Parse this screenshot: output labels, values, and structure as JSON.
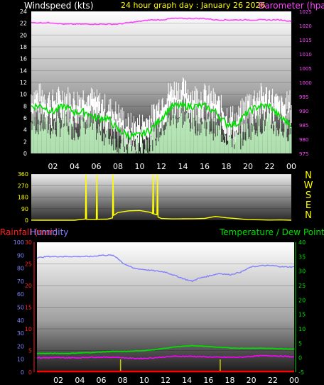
{
  "header": {
    "wind_title": "Windspeed (kts)",
    "date_title": "24 hour graph day : January 26 2026",
    "baro_title": "Barometer (hpa)"
  },
  "x_ticks": [
    "02",
    "04",
    "06",
    "08",
    "10",
    "12",
    "14",
    "16",
    "18",
    "20",
    "22",
    "00"
  ],
  "colors": {
    "wind_gust": "#ffffff",
    "wind_speed": "#c8ffc8",
    "wind_avg": "#00e000",
    "barometer": "#ff44ff",
    "direction": "#ffff00",
    "humidity": "#8080ff",
    "temperature": "#00dd00",
    "dew_point": "#ff00ff",
    "rainfall": "#ff0000",
    "rain_marks": "#cccc00"
  },
  "chart_data": [
    {
      "type": "line",
      "panel": "wind-barometer",
      "title": "24 hour graph day : January 26 2026",
      "ylabel": "Windspeed (kts)",
      "ylim": [
        0,
        24
      ],
      "yticks": [
        0,
        2,
        4,
        6,
        8,
        10,
        12,
        14,
        16,
        18,
        20,
        22,
        24
      ],
      "y2label": "Barometer (hpa)",
      "y2lim": [
        975,
        1025
      ],
      "y2ticks": [
        975,
        980,
        985,
        990,
        995,
        1000,
        1005,
        1010,
        1015,
        1020,
        1025
      ],
      "x_hours": [
        0,
        1,
        2,
        3,
        4,
        5,
        6,
        7,
        8,
        9,
        10,
        11,
        12,
        13,
        14,
        15,
        16,
        17,
        18,
        19,
        20,
        21,
        22,
        23,
        24
      ],
      "series": [
        {
          "name": "gust",
          "values": [
            10,
            10,
            9,
            10,
            9,
            10,
            9,
            8,
            7,
            5,
            5,
            6,
            9,
            11,
            11,
            10,
            10,
            9,
            7,
            6,
            9,
            10,
            10,
            8,
            9
          ]
        },
        {
          "name": "speed",
          "values": [
            5,
            5,
            4,
            5,
            4,
            5,
            4,
            3,
            2,
            1,
            1,
            2,
            4,
            6,
            6,
            5,
            5,
            4,
            3,
            2,
            4,
            5,
            5,
            4,
            4
          ]
        },
        {
          "name": "average",
          "values": [
            8,
            8,
            7,
            8,
            7,
            7,
            6,
            6,
            4,
            3,
            3,
            4,
            6,
            8,
            8,
            8,
            8,
            7,
            5,
            5,
            7,
            8,
            8,
            6,
            5
          ]
        },
        {
          "name": "barometer",
          "values": [
            1021,
            1021,
            1021,
            1020.5,
            1020.5,
            1020.5,
            1020.5,
            1020.5,
            1020.5,
            1021,
            1021.5,
            1022,
            1022,
            1022.5,
            1022.5,
            1022.5,
            1022.5,
            1022,
            1022,
            1022,
            1022,
            1022,
            1022,
            1022,
            1021.5
          ]
        }
      ]
    },
    {
      "type": "line",
      "panel": "wind-direction",
      "ylim": [
        0,
        360
      ],
      "yticks": [
        0,
        90,
        180,
        270,
        360
      ],
      "compass": [
        "N",
        "W",
        "S",
        "E",
        "N"
      ],
      "x_hours": [
        0,
        1,
        2,
        3,
        4,
        5,
        5.05,
        5.1,
        6,
        6.05,
        6.1,
        7,
        7.5,
        7.55,
        7.6,
        8,
        9,
        10,
        11,
        11.2,
        11.25,
        11.3,
        11.6,
        11.65,
        11.7,
        12,
        13,
        14,
        15,
        16,
        17,
        18,
        19,
        20,
        21,
        22,
        23,
        24
      ],
      "series": [
        {
          "name": "direction",
          "values": [
            0,
            0,
            0,
            2,
            2,
            5,
            360,
            5,
            5,
            360,
            5,
            10,
            20,
            360,
            40,
            60,
            75,
            80,
            60,
            50,
            360,
            50,
            45,
            360,
            30,
            10,
            8,
            10,
            10,
            15,
            25,
            20,
            10,
            5,
            5,
            5,
            3,
            0
          ]
        }
      ]
    },
    {
      "type": "line",
      "panel": "humidity-temperature",
      "ylabel": "Humidity",
      "ylim": [
        0,
        100
      ],
      "yticks": [
        0,
        10,
        20,
        30,
        40,
        50,
        60,
        70,
        80,
        90,
        100
      ],
      "rainlabel": "Rainfall (mm)",
      "rainlim": [
        0,
        30
      ],
      "rainticks": [
        0,
        5,
        10,
        15,
        20,
        25,
        30
      ],
      "y2label": "Temperature / Dew Point (c)",
      "y2lim": [
        -5,
        40
      ],
      "y2ticks": [
        -5,
        0,
        5,
        10,
        15,
        20,
        25,
        30,
        35,
        40
      ],
      "x_hours": [
        0,
        1,
        2,
        3,
        4,
        5,
        6,
        7,
        7.5,
        8,
        9,
        10,
        11,
        12,
        13,
        14,
        14.5,
        15,
        16,
        17,
        18,
        19,
        20,
        21,
        22,
        23,
        24
      ],
      "series": [
        {
          "name": "humidity",
          "values": [
            88,
            89,
            89,
            89,
            89,
            89,
            90,
            90,
            88,
            84,
            80,
            79,
            78,
            77,
            74,
            71,
            70,
            72,
            74,
            76,
            75,
            77,
            81,
            82,
            82,
            81,
            81
          ]
        },
        {
          "name": "temperature",
          "values": [
            1.5,
            1.5,
            1.5,
            1.5,
            1.7,
            1.8,
            2,
            2.2,
            2.2,
            2.2,
            2.3,
            2.5,
            2.8,
            3.3,
            3.8,
            4.1,
            4.2,
            4.1,
            3.9,
            3.6,
            3.4,
            3.3,
            3.3,
            3.3,
            3.2,
            3.1,
            3
          ]
        },
        {
          "name": "dew_point",
          "values": [
            0,
            0,
            0,
            0,
            0,
            0.2,
            0.2,
            0.2,
            0.2,
            0,
            -0.2,
            -0.2,
            0,
            0.3,
            0.5,
            0.5,
            0.5,
            0.4,
            0.3,
            0.2,
            0.2,
            0.2,
            0.5,
            0.7,
            0.7,
            0.5,
            0.3
          ]
        },
        {
          "name": "rainfall",
          "values": [
            0,
            0,
            0,
            0,
            0,
            0,
            0,
            0,
            0,
            0,
            0,
            0,
            0,
            0,
            0,
            0,
            0,
            0,
            0,
            0,
            0,
            0,
            0,
            0,
            0,
            0,
            0
          ]
        }
      ],
      "rain_marks_hours": [
        7.8,
        17.1
      ]
    }
  ]
}
